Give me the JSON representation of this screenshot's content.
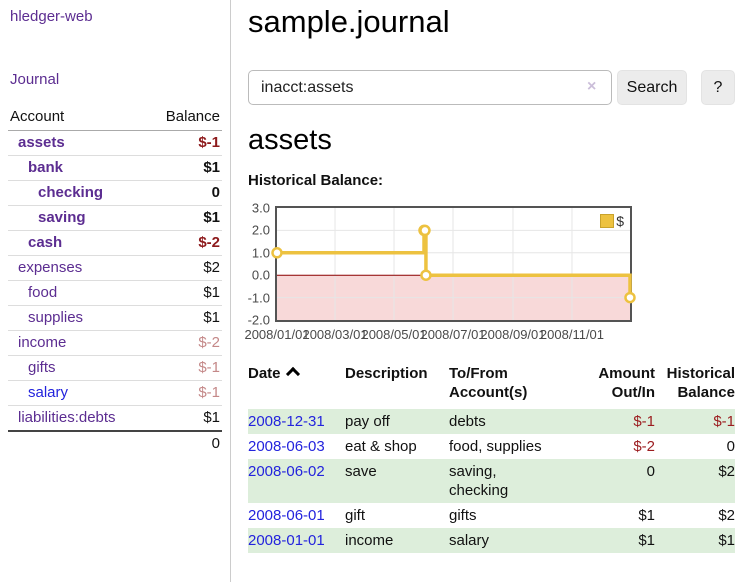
{
  "colors": {
    "link_purple": "#5c2d91",
    "link_blue": "#2323dd",
    "negative_strong": "#8d1a1c",
    "negative_light": "#c48888",
    "register_negative": "#9b1c1f",
    "row_green": "#ddeedb",
    "series_gold": "#edc240",
    "negative_region_pink": "#f8d9d9",
    "zero_line": "#8b0000",
    "chart_border": "#545454",
    "grid": "#e6e6e6"
  },
  "sidebar": {
    "brand": "hledger-web",
    "nav": [
      {
        "label": "Journal"
      }
    ],
    "accounts_table": {
      "headers": [
        "Account",
        "Balance"
      ],
      "rows": [
        {
          "account": "assets",
          "balance": "$-1",
          "depth": 1,
          "bold": true,
          "balance_style": "neg-strong",
          "link_style": "visited"
        },
        {
          "account": "bank",
          "balance": "$1",
          "depth": 2,
          "bold": true,
          "balance_style": "pos",
          "link_style": "visited"
        },
        {
          "account": "checking",
          "balance": "0",
          "depth": 3,
          "bold": true,
          "balance_style": "pos",
          "link_style": "visited"
        },
        {
          "account": "saving",
          "balance": "$1",
          "depth": 3,
          "bold": true,
          "balance_style": "pos",
          "link_style": "visited"
        },
        {
          "account": "cash",
          "balance": "$-2",
          "depth": 2,
          "bold": true,
          "balance_style": "neg-strong",
          "link_style": "visited"
        },
        {
          "account": "expenses",
          "balance": "$2",
          "depth": 1,
          "bold": false,
          "balance_style": "pos",
          "link_style": "visited"
        },
        {
          "account": "food",
          "balance": "$1",
          "depth": 2,
          "bold": false,
          "balance_style": "pos",
          "link_style": "visited"
        },
        {
          "account": "supplies",
          "balance": "$1",
          "depth": 2,
          "bold": false,
          "balance_style": "pos",
          "link_style": "visited"
        },
        {
          "account": "income",
          "balance": "$-2",
          "depth": 1,
          "bold": false,
          "balance_style": "neg-light",
          "link_style": "visited"
        },
        {
          "account": "gifts",
          "balance": "$-1",
          "depth": 2,
          "bold": false,
          "balance_style": "neg-light",
          "link_style": "visited"
        },
        {
          "account": "salary",
          "balance": "$-1",
          "depth": 2,
          "bold": false,
          "balance_style": "neg-light",
          "link_style": "unvisited"
        },
        {
          "account": "liabilities:debts",
          "balance": "$1",
          "depth": 1,
          "bold": false,
          "balance_style": "pos",
          "link_style": "visited"
        }
      ],
      "total": "0"
    }
  },
  "main": {
    "title": "sample.journal",
    "search": {
      "value": "inacct:assets",
      "clear_icon": "×",
      "search_button": "Search",
      "help_button": "?"
    },
    "account_heading": "assets",
    "chart_title": "Historical Balance:"
  },
  "chart_data": {
    "type": "line",
    "subtype": "step-after",
    "title": "Historical Balance of assets",
    "legend": [
      {
        "label": "$",
        "color": "#edc240"
      }
    ],
    "legend_position": "top-right",
    "grid": true,
    "x_range": [
      "2008-01-01",
      "2008-12-31"
    ],
    "y_range": [
      -2,
      3
    ],
    "yticks": [
      "3.0",
      "2.0",
      "1.0",
      "0.0",
      "-1.0",
      "-2.0"
    ],
    "xticks": [
      "2008/01/01",
      "2008/03/01",
      "2008/05/01",
      "2008/07/01",
      "2008/09/01",
      "2008/11/01"
    ],
    "series": [
      {
        "name": "$",
        "color": "#edc240",
        "points": [
          [
            "2008-01-01",
            1
          ],
          [
            "2008-06-01",
            2
          ],
          [
            "2008-06-02",
            2
          ],
          [
            "2008-06-03",
            0
          ],
          [
            "2008-12-31",
            -1
          ]
        ]
      }
    ],
    "negative_region": true,
    "negative_fill": "#f8d9d9",
    "zero_line_color": "#8b0000"
  },
  "register": {
    "headers": [
      {
        "lines": [
          "Date"
        ],
        "sort": "asc",
        "align": "left"
      },
      {
        "lines": [
          "Description"
        ],
        "align": "left"
      },
      {
        "lines": [
          "To/From",
          "Account(s)"
        ],
        "align": "left"
      },
      {
        "lines": [
          "Amount",
          "Out/In"
        ],
        "align": "right"
      },
      {
        "lines": [
          "Historical",
          "Balance"
        ],
        "align": "right"
      }
    ],
    "rows": [
      {
        "date": "2008-12-31",
        "description": "pay off",
        "accounts": "debts",
        "amount": "$-1",
        "amount_neg": true,
        "balance": "$-1",
        "balance_neg": true
      },
      {
        "date": "2008-06-03",
        "description": "eat & shop",
        "accounts": "food, supplies",
        "amount": "$-2",
        "amount_neg": true,
        "balance": "0",
        "balance_neg": false
      },
      {
        "date": "2008-06-02",
        "description": "save",
        "accounts": "saving, checking",
        "amount": "0",
        "amount_neg": false,
        "balance": "$2",
        "balance_neg": false
      },
      {
        "date": "2008-06-01",
        "description": "gift",
        "accounts": "gifts",
        "amount": "$1",
        "amount_neg": false,
        "balance": "$2",
        "balance_neg": false
      },
      {
        "date": "2008-01-01",
        "description": "income",
        "accounts": "salary",
        "amount": "$1",
        "amount_neg": false,
        "balance": "$1",
        "balance_neg": false
      }
    ]
  }
}
